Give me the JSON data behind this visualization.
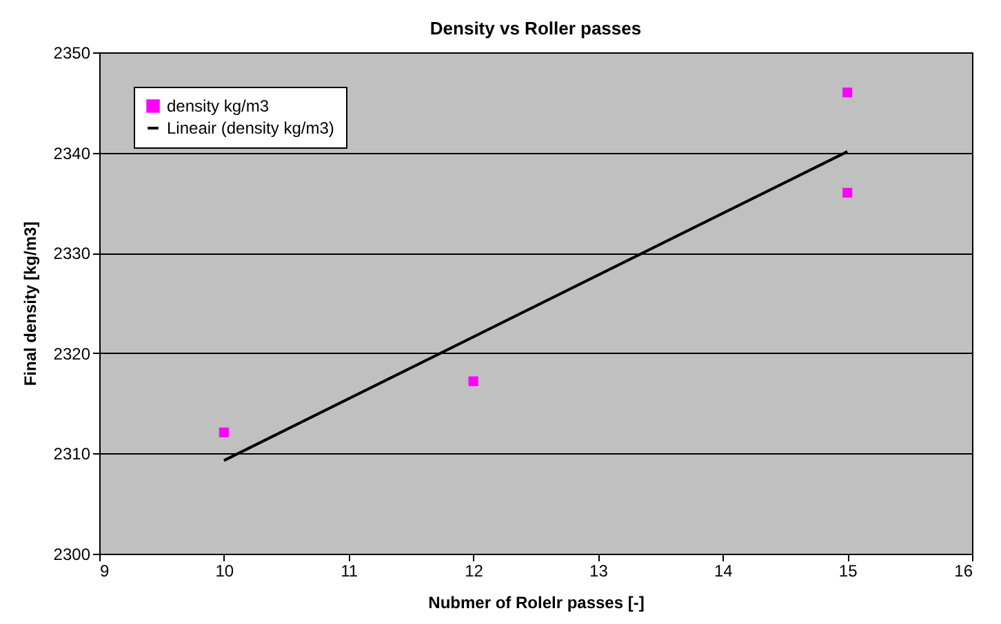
{
  "chart_data": {
    "type": "scatter",
    "title": "Density vs Roller passes",
    "xlabel": "Nubmer of Rolelr passes [-]",
    "ylabel": "Final density [kg/m3]",
    "series": [
      {
        "name": "density kg/m3",
        "color": "#ff00ff",
        "marker": "square",
        "x": [
          10,
          12,
          15,
          15
        ],
        "values": [
          2312.1,
          2317.2,
          2346.0,
          2336.0
        ]
      },
      {
        "name": "Lineair (density kg/m3)",
        "type": "line",
        "color": "#000000",
        "line_style": "solid",
        "marker": "none",
        "x": [
          10,
          15
        ],
        "values": [
          2309.3,
          2340.1
        ]
      }
    ],
    "xlim": [
      9,
      16
    ],
    "xticks": [
      9,
      10,
      11,
      12,
      13,
      14,
      15,
      16
    ],
    "ylim": [
      2300,
      2350
    ],
    "yticks": [
      2300,
      2310,
      2320,
      2330,
      2340,
      2350
    ],
    "grid": "y",
    "legend": "top left"
  }
}
